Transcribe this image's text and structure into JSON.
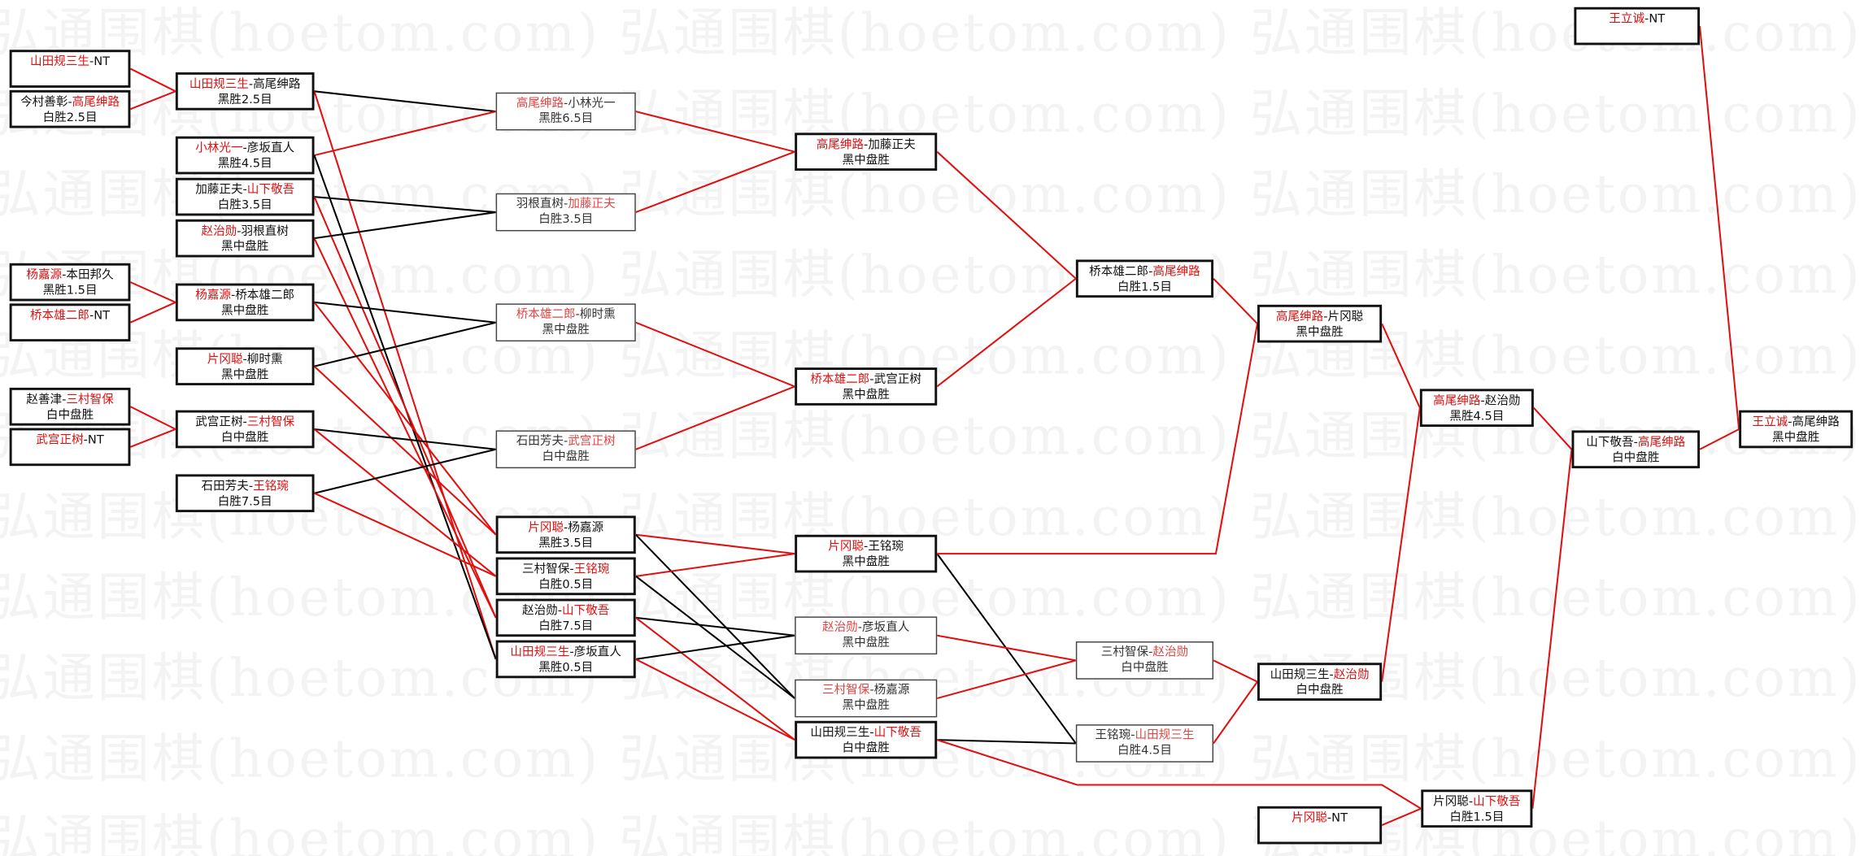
{
  "watermark": "弘通围棋(hoetom.com) 弘通围棋(hoetom.com) 弘通围棋(hoetom.com) 弘通围棋(hoetom.com)",
  "colors": {
    "winner": "#e01010",
    "advance_line": "#e01010",
    "drop_line": "#000000",
    "border": "#111111"
  },
  "boxes": [
    {
      "id": "A1",
      "p1": "山田规三生",
      "p2": "NT",
      "result": "",
      "winner": 1
    },
    {
      "id": "A2",
      "p1": "今村善彰",
      "p2": "高尾绅路",
      "result": "白胜2.5目",
      "winner": 2
    },
    {
      "id": "A3",
      "p1": "杨嘉源",
      "p2": "本田邦久",
      "result": "黑胜1.5目",
      "winner": 1
    },
    {
      "id": "A4",
      "p1": "桥本雄二郎",
      "p2": "NT",
      "result": "",
      "winner": 1
    },
    {
      "id": "A5",
      "p1": "赵善津",
      "p2": "三村智保",
      "result": "白中盘胜",
      "winner": 2
    },
    {
      "id": "A6",
      "p1": "武宫正树",
      "p2": "NT",
      "result": "",
      "winner": 1
    },
    {
      "id": "B1",
      "p1": "山田规三生",
      "p2": "高尾绅路",
      "result": "黑胜2.5目",
      "winner": 1
    },
    {
      "id": "B2",
      "p1": "小林光一",
      "p2": "彦坂直人",
      "result": "黑胜4.5目",
      "winner": 1
    },
    {
      "id": "B3",
      "p1": "加藤正夫",
      "p2": "山下敬吾",
      "result": "白胜3.5目",
      "winner": 2
    },
    {
      "id": "B4",
      "p1": "赵治勋",
      "p2": "羽根直树",
      "result": "黑中盘胜",
      "winner": 1
    },
    {
      "id": "B5",
      "p1": "杨嘉源",
      "p2": "桥本雄二郎",
      "result": "黑中盘胜",
      "winner": 1
    },
    {
      "id": "B6",
      "p1": "片冈聪",
      "p2": "柳时熏",
      "result": "黑中盘胜",
      "winner": 1
    },
    {
      "id": "B7",
      "p1": "武宫正树",
      "p2": "三村智保",
      "result": "白中盘胜",
      "winner": 2
    },
    {
      "id": "B8",
      "p1": "石田芳夫",
      "p2": "王铭琬",
      "result": "白胜7.5目",
      "winner": 2
    },
    {
      "id": "C1",
      "p1": "高尾绅路",
      "p2": "小林光一",
      "result": "黑胜6.5目",
      "winner": 1
    },
    {
      "id": "C2",
      "p1": "羽根直树",
      "p2": "加藤正夫",
      "result": "白胜3.5目",
      "winner": 2
    },
    {
      "id": "C3",
      "p1": "桥本雄二郎",
      "p2": "柳时熏",
      "result": "黑中盘胜",
      "winner": 1
    },
    {
      "id": "C4",
      "p1": "石田芳夫",
      "p2": "武宫正树",
      "result": "白中盘胜",
      "winner": 2
    },
    {
      "id": "C5",
      "p1": "片冈聪",
      "p2": "杨嘉源",
      "result": "黑胜3.5目",
      "winner": 1
    },
    {
      "id": "C6",
      "p1": "三村智保",
      "p2": "王铭琬",
      "result": "白胜0.5目",
      "winner": 2
    },
    {
      "id": "C7",
      "p1": "赵治勋",
      "p2": "山下敬吾",
      "result": "白胜7.5目",
      "winner": 2
    },
    {
      "id": "C8",
      "p1": "山田规三生",
      "p2": "彦坂直人",
      "result": "黑胜0.5目",
      "winner": 1
    },
    {
      "id": "D1",
      "p1": "高尾绅路",
      "p2": "加藤正夫",
      "result": "黑中盘胜",
      "winner": 1
    },
    {
      "id": "D2",
      "p1": "桥本雄二郎",
      "p2": "武宫正树",
      "result": "黑中盘胜",
      "winner": 1
    },
    {
      "id": "D3",
      "p1": "片冈聪",
      "p2": "王铭琬",
      "result": "黑中盘胜",
      "winner": 1
    },
    {
      "id": "D4",
      "p1": "赵治勋",
      "p2": "彦坂直人",
      "result": "黑中盘胜",
      "winner": 1
    },
    {
      "id": "D5",
      "p1": "三村智保",
      "p2": "杨嘉源",
      "result": "黑中盘胜",
      "winner": 1
    },
    {
      "id": "D6",
      "p1": "山田规三生",
      "p2": "山下敬吾",
      "result": "白中盘胜",
      "winner": 2
    },
    {
      "id": "E1",
      "p1": "桥本雄二郎",
      "p2": "高尾绅路",
      "result": "白胜1.5目",
      "winner": 2
    },
    {
      "id": "E2",
      "p1": "三村智保",
      "p2": "赵治勋",
      "result": "白中盘胜",
      "winner": 2
    },
    {
      "id": "E3",
      "p1": "王铭琬",
      "p2": "山田规三生",
      "result": "白胜4.5目",
      "winner": 2
    },
    {
      "id": "F1",
      "p1": "高尾绅路",
      "p2": "片冈聪",
      "result": "黑中盘胜",
      "winner": 1
    },
    {
      "id": "F2",
      "p1": "山田规三生",
      "p2": "赵治勋",
      "result": "白中盘胜",
      "winner": 2
    },
    {
      "id": "F3",
      "p1": "片冈聪",
      "p2": "NT",
      "result": "",
      "winner": 1
    },
    {
      "id": "G1",
      "p1": "高尾绅路",
      "p2": "赵治勋",
      "result": "黑胜4.5目",
      "winner": 1
    },
    {
      "id": "G2",
      "p1": "片冈聪",
      "p2": "山下敬吾",
      "result": "白胜1.5目",
      "winner": 2
    },
    {
      "id": "H0",
      "p1": "王立诚",
      "p2": "NT",
      "result": "",
      "winner": 1
    },
    {
      "id": "H1",
      "p1": "山下敬吾",
      "p2": "高尾绅路",
      "result": "白中盘胜",
      "winner": 2
    },
    {
      "id": "I1",
      "p1": "王立诚",
      "p2": "高尾绅路",
      "result": "黑中盘胜",
      "winner": 1
    }
  ]
}
